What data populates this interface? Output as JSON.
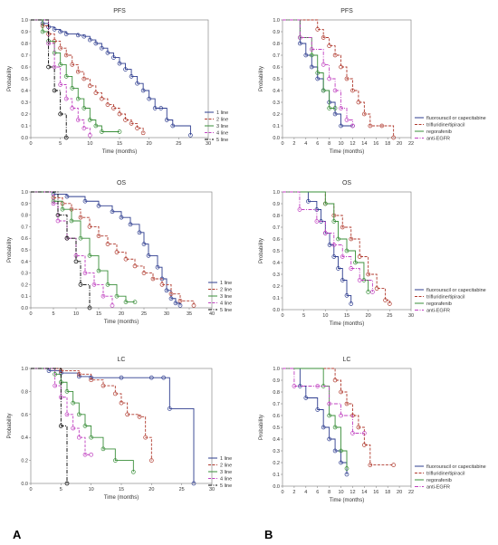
{
  "figure": {
    "panel_labels": [
      "A",
      "B"
    ]
  },
  "chart_data": [
    {
      "id": "A-PFS",
      "type": "line",
      "title": "PFS",
      "xlabel": "Time (months)",
      "ylabel": "Probability",
      "xlim": [
        0,
        30
      ],
      "ylim": [
        0,
        1.0
      ],
      "xticks": [
        0,
        5,
        10,
        15,
        20,
        25,
        30
      ],
      "yticks": [
        0.0,
        0.1,
        0.2,
        0.3,
        0.4,
        0.5,
        0.6,
        0.7,
        0.8,
        0.9,
        1.0
      ],
      "legend_position": "bottom-right",
      "series": [
        {
          "name": "1 line",
          "color": "#2e3d8f",
          "dash": "",
          "x": [
            0,
            2,
            3,
            4,
            5,
            6,
            8,
            9,
            10,
            11,
            12,
            13,
            14,
            15,
            16,
            17,
            18,
            19,
            20,
            21,
            22,
            23,
            24,
            27
          ],
          "y": [
            1.0,
            0.97,
            0.94,
            0.92,
            0.9,
            0.88,
            0.87,
            0.86,
            0.83,
            0.8,
            0.76,
            0.72,
            0.68,
            0.63,
            0.58,
            0.52,
            0.46,
            0.4,
            0.33,
            0.25,
            0.25,
            0.15,
            0.1,
            0.02
          ]
        },
        {
          "name": "2 line",
          "color": "#b03a2e",
          "dash": "3,1.5",
          "x": [
            0,
            2,
            3,
            4,
            5,
            6,
            7,
            8,
            9,
            10,
            11,
            12,
            13,
            14,
            15,
            16,
            17,
            18,
            19
          ],
          "y": [
            1.0,
            0.95,
            0.88,
            0.82,
            0.76,
            0.7,
            0.62,
            0.56,
            0.5,
            0.44,
            0.38,
            0.33,
            0.28,
            0.25,
            0.2,
            0.15,
            0.12,
            0.08,
            0.04
          ]
        },
        {
          "name": "3 line",
          "color": "#3a8f3a",
          "dash": "",
          "x": [
            0,
            2,
            3,
            4,
            5,
            6,
            7,
            8,
            9,
            10,
            11,
            12,
            15
          ],
          "y": [
            1.0,
            0.9,
            0.82,
            0.72,
            0.62,
            0.52,
            0.42,
            0.33,
            0.25,
            0.15,
            0.1,
            0.05,
            0.05
          ]
        },
        {
          "name": "4 line",
          "color": "#c040c0",
          "dash": "3,1.5",
          "x": [
            0,
            3,
            4,
            5,
            6,
            7,
            8,
            9,
            10
          ],
          "y": [
            1.0,
            0.8,
            0.6,
            0.45,
            0.33,
            0.25,
            0.15,
            0.08,
            0.02
          ]
        },
        {
          "name": "5 line",
          "color": "#000000",
          "dash": "4,1.5,1,1.5",
          "x": [
            0,
            3,
            4,
            5,
            6
          ],
          "y": [
            1.0,
            0.6,
            0.4,
            0.2,
            0.0
          ]
        }
      ]
    },
    {
      "id": "B-PFS",
      "type": "line",
      "title": "PFS",
      "xlabel": "Time (months)",
      "ylabel": "Probability",
      "xlim": [
        0,
        22
      ],
      "ylim": [
        0,
        1.0
      ],
      "xticks": [
        0,
        2,
        4,
        6,
        8,
        10,
        12,
        14,
        16,
        18,
        20,
        22
      ],
      "yticks": [
        0.0,
        0.1,
        0.2,
        0.3,
        0.4,
        0.5,
        0.6,
        0.7,
        0.8,
        0.9,
        1.0
      ],
      "legend_position": "bottom-right",
      "series": [
        {
          "name": "fluorouracil or capecitabine",
          "color": "#2e3d8f",
          "dash": "",
          "x": [
            0,
            3,
            4,
            5,
            6,
            7,
            8,
            9,
            10,
            12
          ],
          "y": [
            1.0,
            0.8,
            0.7,
            0.6,
            0.5,
            0.4,
            0.3,
            0.2,
            0.1,
            0.1
          ]
        },
        {
          "name": "trifluridine/tipiracil",
          "color": "#b03a2e",
          "dash": "3,1.5",
          "x": [
            0,
            6,
            7,
            8,
            9,
            10,
            11,
            12,
            13,
            14,
            15,
            17,
            19
          ],
          "y": [
            1.0,
            0.92,
            0.85,
            0.78,
            0.7,
            0.6,
            0.5,
            0.4,
            0.3,
            0.2,
            0.1,
            0.1,
            0.0
          ]
        },
        {
          "name": "regorafenib",
          "color": "#3a8f3a",
          "dash": "",
          "x": [
            0,
            3,
            5,
            6,
            7,
            8,
            9
          ],
          "y": [
            1.0,
            0.85,
            0.7,
            0.55,
            0.4,
            0.25,
            0.25
          ]
        },
        {
          "name": "anti-EGFR",
          "color": "#c040c0",
          "dash": "4,1.5,1,1.5",
          "x": [
            0,
            3,
            5,
            7,
            8,
            9,
            10,
            11,
            12
          ],
          "y": [
            1.0,
            0.85,
            0.75,
            0.62,
            0.5,
            0.4,
            0.25,
            0.15,
            0.1
          ]
        }
      ]
    },
    {
      "id": "A-OS",
      "type": "line",
      "title": "OS",
      "xlabel": "Time (months)",
      "ylabel": "Probability",
      "xlim": [
        0,
        40
      ],
      "ylim": [
        0,
        1.0
      ],
      "xticks": [
        0,
        5,
        10,
        15,
        20,
        25,
        30,
        35,
        40
      ],
      "yticks": [
        0.0,
        0.1,
        0.2,
        0.3,
        0.4,
        0.5,
        0.6,
        0.7,
        0.8,
        0.9,
        1.0
      ],
      "legend_position": "bottom-right",
      "series": [
        {
          "name": "1 line",
          "color": "#2e3d8f",
          "dash": "",
          "x": [
            0,
            5,
            8,
            12,
            15,
            18,
            20,
            22,
            24,
            25,
            26,
            28,
            29,
            30,
            31,
            32,
            33
          ],
          "y": [
            1.0,
            0.98,
            0.96,
            0.92,
            0.88,
            0.83,
            0.78,
            0.72,
            0.65,
            0.55,
            0.45,
            0.35,
            0.25,
            0.15,
            0.08,
            0.04,
            0.02
          ]
        },
        {
          "name": "2 line",
          "color": "#b03a2e",
          "dash": "3,1.5",
          "x": [
            0,
            5,
            7,
            9,
            11,
            13,
            15,
            17,
            19,
            21,
            23,
            25,
            27,
            29,
            31,
            33,
            36
          ],
          "y": [
            1.0,
            0.95,
            0.9,
            0.85,
            0.78,
            0.7,
            0.62,
            0.55,
            0.48,
            0.42,
            0.36,
            0.3,
            0.25,
            0.2,
            0.12,
            0.06,
            0.02
          ]
        },
        {
          "name": "3 line",
          "color": "#3a8f3a",
          "dash": "",
          "x": [
            0,
            5,
            7,
            9,
            11,
            13,
            15,
            17,
            19,
            21,
            23
          ],
          "y": [
            1.0,
            0.92,
            0.85,
            0.75,
            0.6,
            0.45,
            0.32,
            0.2,
            0.1,
            0.05,
            0.05
          ]
        },
        {
          "name": "4 line",
          "color": "#c040c0",
          "dash": "3,1.5",
          "x": [
            0,
            5,
            6,
            8,
            10,
            12,
            14,
            16,
            18
          ],
          "y": [
            1.0,
            0.9,
            0.75,
            0.6,
            0.45,
            0.3,
            0.2,
            0.1,
            0.02
          ]
        },
        {
          "name": "5 line",
          "color": "#000000",
          "dash": "4,1.5,1,1.5",
          "x": [
            0,
            6,
            8,
            10,
            11,
            13
          ],
          "y": [
            1.0,
            0.8,
            0.6,
            0.4,
            0.2,
            0.0
          ]
        }
      ]
    },
    {
      "id": "B-OS",
      "type": "line",
      "title": "OS",
      "xlabel": "Time (months)",
      "ylabel": "Probability",
      "xlim": [
        0,
        30
      ],
      "ylim": [
        0,
        1.0
      ],
      "xticks": [
        0,
        5,
        10,
        15,
        20,
        25,
        30
      ],
      "yticks": [
        0.0,
        0.1,
        0.2,
        0.3,
        0.4,
        0.5,
        0.6,
        0.7,
        0.8,
        0.9,
        1.0
      ],
      "legend_position": "bottom-right",
      "series": [
        {
          "name": "fluorouracil or capecitabine",
          "color": "#2e3d8f",
          "dash": "",
          "x": [
            0,
            6,
            8,
            9,
            10,
            11,
            12,
            13,
            14,
            15,
            16
          ],
          "y": [
            1.0,
            0.92,
            0.85,
            0.75,
            0.65,
            0.55,
            0.45,
            0.35,
            0.25,
            0.12,
            0.05
          ]
        },
        {
          "name": "trifluridine/tipiracil",
          "color": "#b03a2e",
          "dash": "3,1.5",
          "x": [
            0,
            10,
            12,
            14,
            16,
            18,
            20,
            22,
            24,
            25
          ],
          "y": [
            1.0,
            0.9,
            0.8,
            0.7,
            0.6,
            0.45,
            0.3,
            0.18,
            0.08,
            0.05
          ]
        },
        {
          "name": "regorafenib",
          "color": "#3a8f3a",
          "dash": "",
          "x": [
            0,
            10,
            12,
            13,
            15,
            17,
            19,
            20
          ],
          "y": [
            1.0,
            0.9,
            0.75,
            0.6,
            0.5,
            0.4,
            0.25,
            0.15
          ]
        },
        {
          "name": "anti-EGFR",
          "color": "#c040c0",
          "dash": "4,1.5,1,1.5",
          "x": [
            0,
            4,
            8,
            10,
            12,
            14,
            16,
            18,
            21
          ],
          "y": [
            1.0,
            0.85,
            0.75,
            0.65,
            0.55,
            0.45,
            0.35,
            0.25,
            0.15
          ]
        }
      ]
    },
    {
      "id": "A-LC",
      "type": "line",
      "title": "LC",
      "xlabel": "Time (months)",
      "ylabel": "Probability",
      "xlim": [
        0,
        30
      ],
      "ylim": [
        0,
        1.0
      ],
      "xticks": [
        0,
        5,
        10,
        15,
        20,
        25,
        30
      ],
      "yticks": [
        0.0,
        0.2,
        0.4,
        0.6,
        0.8,
        1.0
      ],
      "legend_position": "bottom-right",
      "series": [
        {
          "name": "1 line",
          "color": "#2e3d8f",
          "dash": "",
          "x": [
            0,
            3,
            5,
            8,
            10,
            15,
            20,
            22,
            23,
            27
          ],
          "y": [
            1.0,
            0.98,
            0.96,
            0.93,
            0.92,
            0.92,
            0.92,
            0.92,
            0.65,
            0.0
          ]
        },
        {
          "name": "2 line",
          "color": "#b03a2e",
          "dash": "3,1.5",
          "x": [
            0,
            5,
            8,
            10,
            12,
            14,
            15,
            16,
            18,
            19,
            20
          ],
          "y": [
            1.0,
            0.98,
            0.95,
            0.9,
            0.85,
            0.78,
            0.7,
            0.6,
            0.58,
            0.4,
            0.2
          ]
        },
        {
          "name": "3 line",
          "color": "#3a8f3a",
          "dash": "",
          "x": [
            0,
            4,
            5,
            6,
            7,
            8,
            9,
            10,
            12,
            14,
            17
          ],
          "y": [
            1.0,
            0.95,
            0.88,
            0.8,
            0.7,
            0.6,
            0.5,
            0.4,
            0.3,
            0.2,
            0.1
          ]
        },
        {
          "name": "4 line",
          "color": "#c040c0",
          "dash": "3,1.5",
          "x": [
            0,
            4,
            5,
            6,
            7,
            8,
            9,
            10
          ],
          "y": [
            1.0,
            0.85,
            0.75,
            0.6,
            0.48,
            0.4,
            0.25,
            0.25
          ]
        },
        {
          "name": "5 line",
          "color": "#000000",
          "dash": "4,1.5,1,1.5",
          "x": [
            0,
            5,
            6
          ],
          "y": [
            1.0,
            0.5,
            0.0
          ]
        }
      ]
    },
    {
      "id": "B-LC",
      "type": "line",
      "title": "LC",
      "xlabel": "Time (months)",
      "ylabel": "Probability",
      "xlim": [
        0,
        22
      ],
      "ylim": [
        0,
        1.0
      ],
      "xticks": [
        0,
        2,
        4,
        6,
        8,
        10,
        12,
        14,
        16,
        18,
        20,
        22
      ],
      "yticks": [
        0.0,
        0.1,
        0.2,
        0.3,
        0.4,
        0.5,
        0.6,
        0.7,
        0.8,
        0.9,
        1.0
      ],
      "legend_position": "bottom-right",
      "series": [
        {
          "name": "fluorouracil or capecitabine",
          "color": "#2e3d8f",
          "dash": "",
          "x": [
            0,
            3,
            4,
            6,
            7,
            8,
            9,
            10,
            11
          ],
          "y": [
            1.0,
            0.85,
            0.75,
            0.65,
            0.5,
            0.4,
            0.3,
            0.2,
            0.1
          ]
        },
        {
          "name": "trifluridine/tipiracil",
          "color": "#b03a2e",
          "dash": "3,1.5",
          "x": [
            0,
            9,
            10,
            11,
            12,
            13,
            14,
            15,
            19
          ],
          "y": [
            1.0,
            0.9,
            0.8,
            0.7,
            0.6,
            0.5,
            0.35,
            0.18,
            0.18
          ]
        },
        {
          "name": "regorafenib",
          "color": "#3a8f3a",
          "dash": "",
          "x": [
            0,
            7,
            8,
            9,
            10,
            11
          ],
          "y": [
            1.0,
            0.85,
            0.6,
            0.5,
            0.3,
            0.15
          ]
        },
        {
          "name": "anti-EGFR",
          "color": "#c040c0",
          "dash": "4,1.5,1,1.5",
          "x": [
            0,
            2,
            6,
            8,
            10,
            12,
            14
          ],
          "y": [
            1.0,
            0.85,
            0.85,
            0.7,
            0.6,
            0.45,
            0.45
          ]
        }
      ]
    }
  ]
}
